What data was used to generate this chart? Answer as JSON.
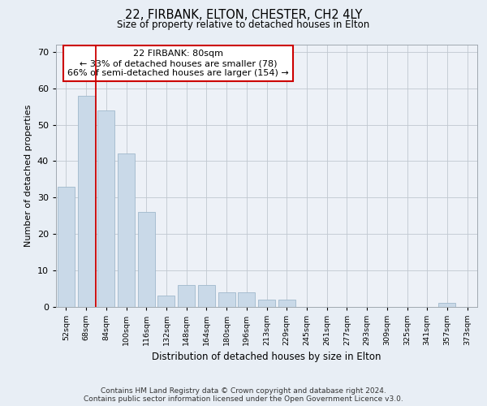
{
  "title1": "22, FIRBANK, ELTON, CHESTER, CH2 4LY",
  "title2": "Size of property relative to detached houses in Elton",
  "xlabel": "Distribution of detached houses by size in Elton",
  "ylabel": "Number of detached properties",
  "categories": [
    "52sqm",
    "68sqm",
    "84sqm",
    "100sqm",
    "116sqm",
    "132sqm",
    "148sqm",
    "164sqm",
    "180sqm",
    "196sqm",
    "213sqm",
    "229sqm",
    "245sqm",
    "261sqm",
    "277sqm",
    "293sqm",
    "309sqm",
    "325sqm",
    "341sqm",
    "357sqm",
    "373sqm"
  ],
  "values": [
    33,
    58,
    54,
    42,
    26,
    3,
    6,
    6,
    4,
    4,
    2,
    2,
    0,
    0,
    0,
    0,
    0,
    0,
    0,
    1,
    0
  ],
  "bar_color": "#c9d9e8",
  "bar_edge_color": "#a0b8cc",
  "vline_x": 1.5,
  "vline_color": "#cc0000",
  "annotation_text": "22 FIRBANK: 80sqm\n← 33% of detached houses are smaller (78)\n66% of semi-detached houses are larger (154) →",
  "annotation_box_color": "#ffffff",
  "annotation_box_edge": "#cc0000",
  "ylim": [
    0,
    72
  ],
  "yticks": [
    0,
    10,
    20,
    30,
    40,
    50,
    60,
    70
  ],
  "footer": "Contains HM Land Registry data © Crown copyright and database right 2024.\nContains public sector information licensed under the Open Government Licence v3.0.",
  "bg_color": "#e8eef5",
  "plot_bg_color": "#edf1f7"
}
